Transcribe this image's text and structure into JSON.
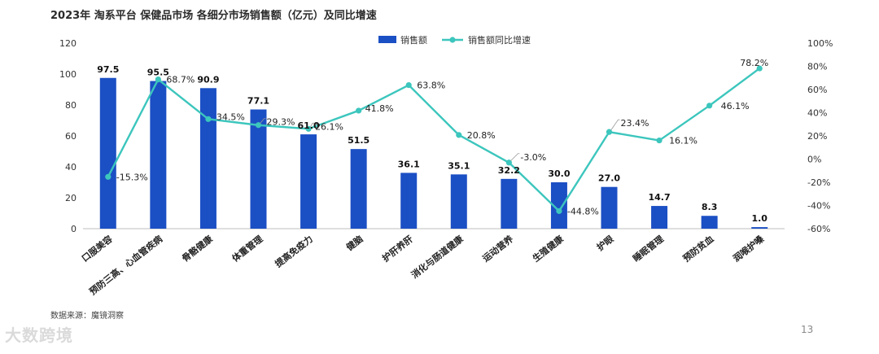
{
  "title": "2023年 淘系平台  保健品市场 各细分市场销售额（亿元）及同比增速",
  "source": "数据来源：魔镜洞察",
  "watermark": "大数跨境",
  "page_number": "13",
  "colors": {
    "bar": "#1b4fc4",
    "line": "#3cc6bd"
  },
  "chart_data": {
    "type": "bar",
    "title": "2023年 淘系平台  保健品市场 各细分市场销售额（亿元）及同比增速",
    "categories": [
      "口服美容",
      "预防三高、心血管疾病",
      "骨骼健康",
      "体重管理",
      "提高免疫力",
      "健脑",
      "护肝养肝",
      "消化与肠道健康",
      "运动营养",
      "生殖健康",
      "护眼",
      "睡眠管理",
      "预防贫血",
      "润喉护嗓"
    ],
    "series": [
      {
        "name": "销售额",
        "type": "bar",
        "axis": "left",
        "values": [
          97.5,
          95.5,
          90.9,
          77.1,
          61.0,
          51.5,
          36.1,
          35.1,
          32.2,
          30.0,
          27.0,
          14.7,
          8.3,
          1.0
        ],
        "labels": [
          "97.5",
          "95.5",
          "90.9",
          "77.1",
          "61.0",
          "51.5",
          "36.1",
          "35.1",
          "32.2",
          "30.0",
          "27.0",
          "14.7",
          "8.3",
          "1.0"
        ]
      },
      {
        "name": "销售额同比增速",
        "type": "line",
        "axis": "right",
        "values": [
          -15.3,
          68.7,
          34.5,
          29.3,
          26.1,
          41.8,
          63.8,
          20.8,
          -3.0,
          -44.8,
          23.4,
          16.1,
          46.1,
          78.2
        ],
        "labels": [
          "-15.3%",
          "68.7%",
          "34.5%",
          "29.3%",
          "26.1%",
          "41.8%",
          "63.8%",
          "20.8%",
          "-3.0%",
          "-44.8%",
          "23.4%",
          "16.1%",
          "46.1%",
          "78.2%"
        ]
      }
    ],
    "y_left": {
      "ylim": [
        0,
        120
      ],
      "ticks": [
        "0",
        "20",
        "40",
        "60",
        "80",
        "100",
        "120"
      ]
    },
    "y_right": {
      "ylim": [
        -60,
        100
      ],
      "ticks": [
        "-60%",
        "-40%",
        "-20%",
        "0%",
        "20%",
        "40%",
        "60%",
        "80%",
        "100%"
      ]
    },
    "grid": false,
    "legend": "top-center"
  }
}
